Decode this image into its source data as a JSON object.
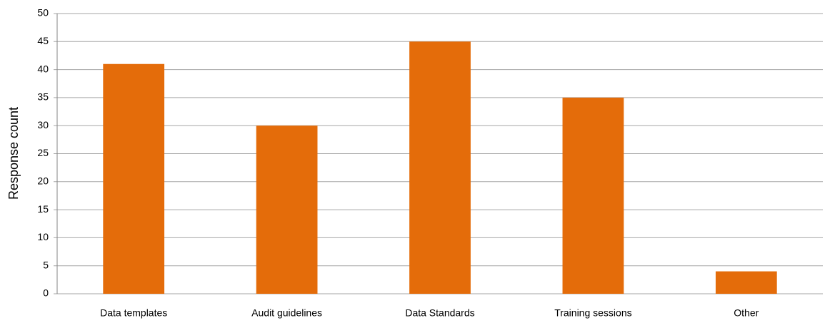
{
  "chart_data": {
    "type": "bar",
    "y_label": "Response count",
    "categories": [
      "Data templates",
      "Audit guidelines",
      "Data Standards",
      "Training sessions",
      "Other"
    ],
    "values": [
      41,
      30,
      45,
      35,
      4
    ],
    "color": "#e46c0a",
    "ylim": [
      0,
      50
    ],
    "yticks": [
      0,
      5,
      10,
      15,
      20,
      25,
      30,
      35,
      40,
      45,
      50
    ],
    "grid": true
  }
}
